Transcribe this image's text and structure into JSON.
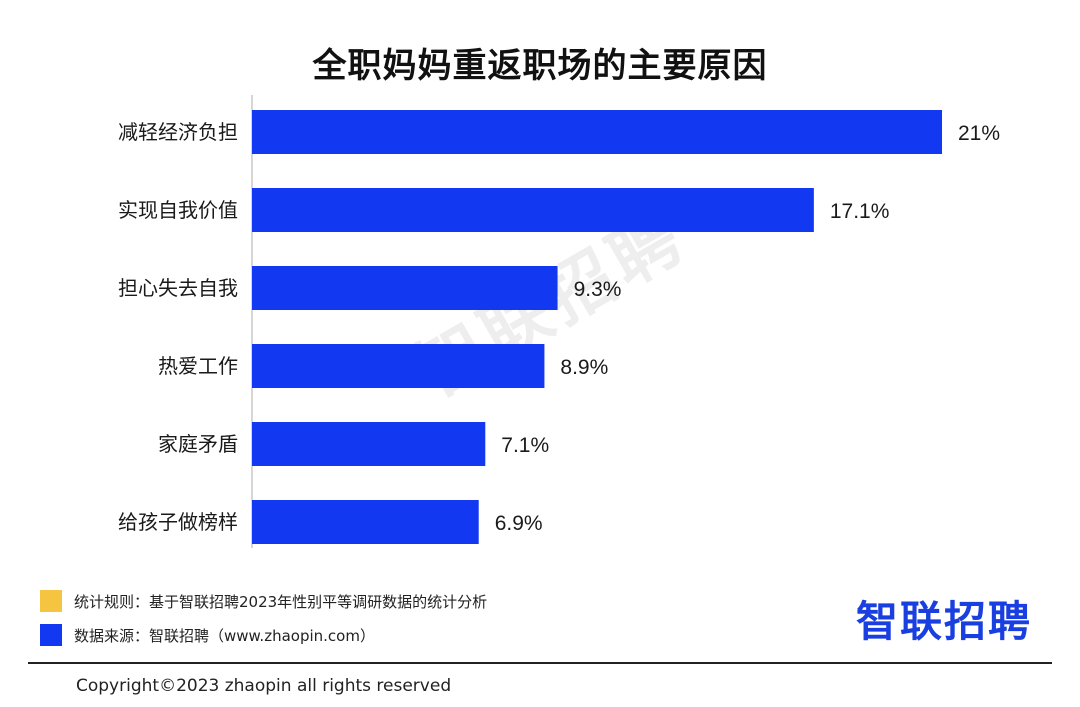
{
  "title": "全职妈妈重返职场的主要原因",
  "watermark": "智联招聘",
  "colors": {
    "bar": "#1338f2",
    "legend_rule": "#f5c542",
    "legend_source": "#1338f2",
    "brand": "#1a3fe0"
  },
  "chart_data": {
    "type": "bar",
    "orientation": "horizontal",
    "title": "全职妈妈重返职场的主要原因",
    "categories": [
      "减轻经济负担",
      "实现自我价值",
      "担心失去自我",
      "热爱工作",
      "家庭矛盾",
      "给孩子做榜样"
    ],
    "values": [
      21,
      17.1,
      9.3,
      8.9,
      7.1,
      6.9
    ],
    "value_labels": [
      "21%",
      "17.1%",
      "9.3%",
      "8.9%",
      "7.1%",
      "6.9%"
    ],
    "unit": "%",
    "xlim": [
      0,
      21
    ],
    "grid": false
  },
  "legend": {
    "rule_label": "统计规则：基于智联招聘2023年性别平等调研数据的统计分析",
    "source_label": "数据来源：智联招聘（www.zhaopin.com）"
  },
  "brand": {
    "logo_text": "智联招聘"
  },
  "footer": {
    "copyright": "Copyright©2023 zhaopin all rights reserved"
  }
}
